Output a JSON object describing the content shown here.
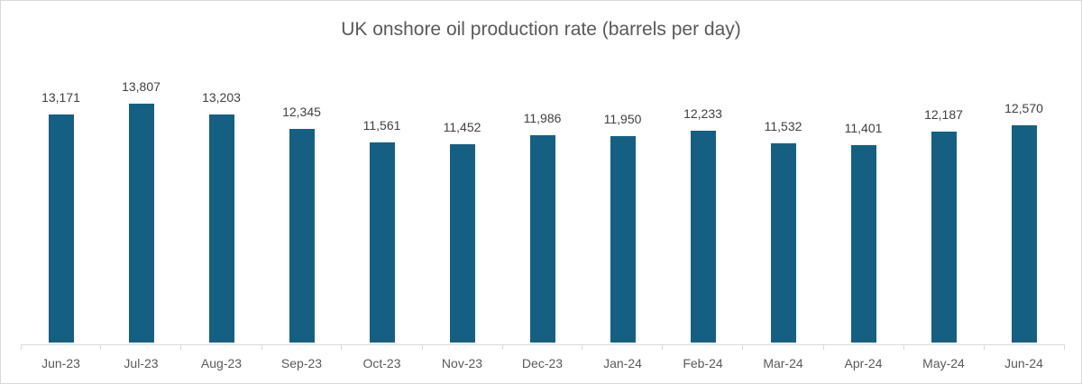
{
  "chart_data": {
    "type": "bar",
    "title": "UK onshore oil production rate (barrels per day)",
    "categories": [
      "Jun-23",
      "Jul-23",
      "Aug-23",
      "Sep-23",
      "Oct-23",
      "Nov-23",
      "Dec-23",
      "Jan-24",
      "Feb-24",
      "Mar-24",
      "Apr-24",
      "May-24",
      "Jun-24"
    ],
    "values": [
      13171,
      13807,
      13203,
      12345,
      11561,
      11452,
      11986,
      11950,
      12233,
      11532,
      11401,
      12187,
      12570
    ],
    "value_labels": [
      "13,171",
      "13,807",
      "13,203",
      "12,345",
      "11,561",
      "11,452",
      "11,986",
      "11,950",
      "12,233",
      "11,532",
      "11,401",
      "12,187",
      "12,570"
    ],
    "xlabel": "",
    "ylabel": "",
    "ylim": [
      0,
      14000
    ],
    "grid": false,
    "legend": false,
    "data_labels_position": "outside-end",
    "y_axis_visible": false
  },
  "colors": {
    "bar": "#156082",
    "title_text": "#595959",
    "axis_label_text": "#595959",
    "data_label_text": "#404040",
    "axis_line": "#D9D9D9",
    "chart_border": "#D9D9D9",
    "background": "#FFFFFF"
  }
}
